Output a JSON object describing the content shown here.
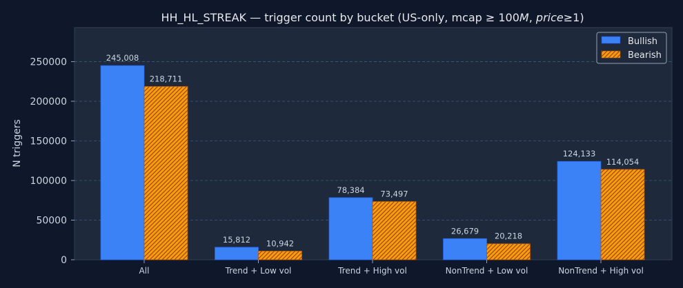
{
  "chart_data": {
    "type": "bar",
    "title": "HH_HL_STREAK — trigger count by bucket (US-only, mcap ≥ 100M, price≥1)",
    "title_parts": {
      "prefix": "HH_HL_STREAK — trigger count by bucket (US-only, mcap ≥ 100",
      "m": "M",
      "mid": ", ",
      "price": "price",
      "suffix": "≥1)"
    },
    "xlabel": "",
    "ylabel": "N triggers",
    "ylim": [
      0,
      293000
    ],
    "yticks": [
      0,
      50000,
      100000,
      150000,
      200000,
      250000
    ],
    "grid": true,
    "legend_position": "top-right",
    "categories": [
      "All",
      "Trend + Low vol",
      "Trend + High vol",
      "NonTrend + Low vol",
      "NonTrend + High vol"
    ],
    "series": [
      {
        "name": "Bullish",
        "color": "#3b82f6",
        "values": [
          245008,
          15812,
          78384,
          26679,
          124133
        ],
        "labels": [
          "245,008",
          "15,812",
          "78,384",
          "26,679",
          "124,133"
        ]
      },
      {
        "name": "Bearish",
        "color": "#f59e0b",
        "hatch_color": "#9a3412",
        "values": [
          218711,
          10942,
          73497,
          20218,
          114054
        ],
        "labels": [
          "218,711",
          "10,942",
          "73,497",
          "20,218",
          "114,054"
        ]
      }
    ]
  }
}
